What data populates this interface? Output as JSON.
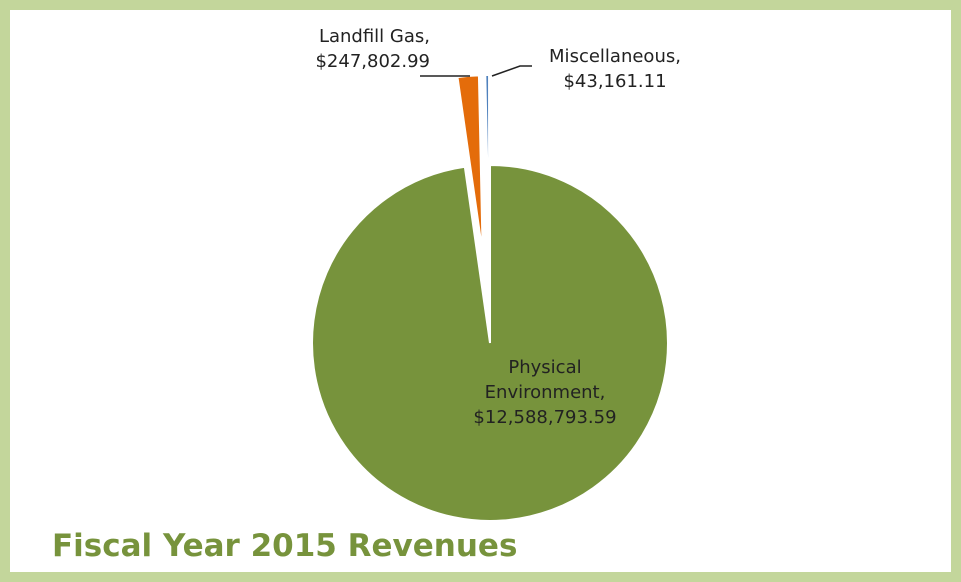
{
  "chart_data": {
    "type": "pie",
    "title": "Fiscal Year 2015 Revenues",
    "categories": [
      "Physical Environment,",
      "Landfill Gas,",
      "Miscellaneous,"
    ],
    "values": [
      12588793.59,
      247802.99,
      43161.11
    ],
    "value_labels": [
      "$12,588,793.59",
      "$247,802.99",
      "$43,161.11"
    ],
    "colors": [
      "#77933c",
      "#e46c0a",
      "#4f81bd"
    ]
  }
}
